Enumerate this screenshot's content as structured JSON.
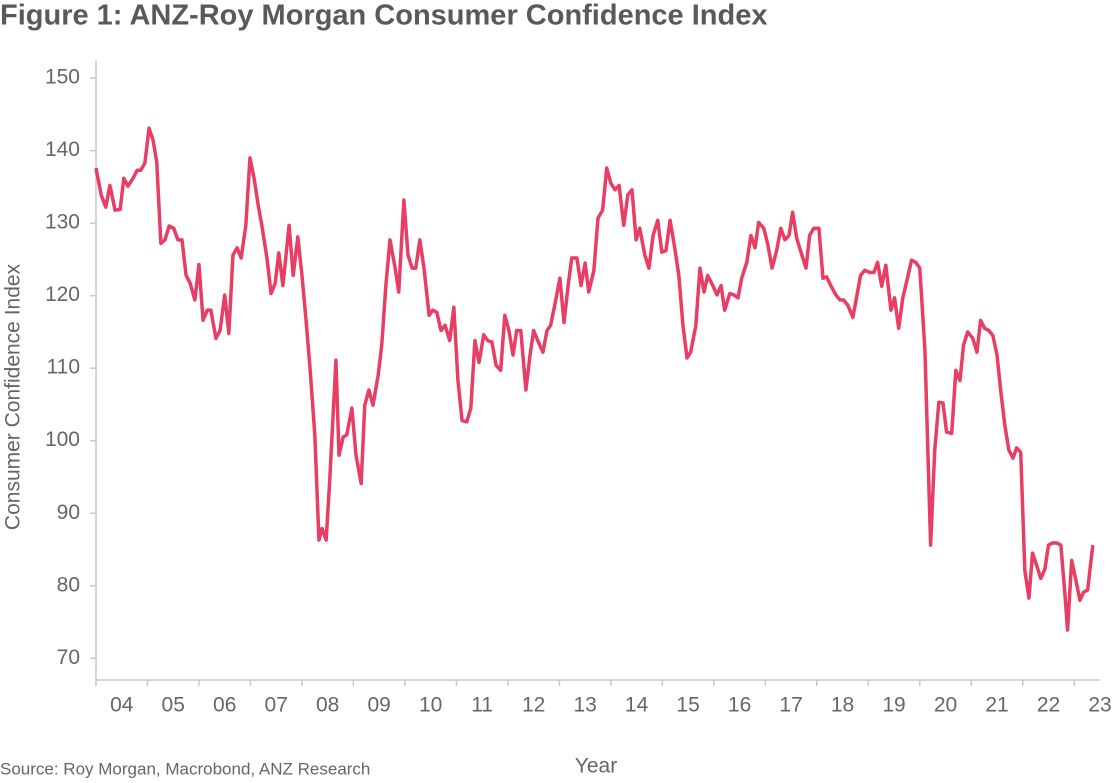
{
  "chart_data": {
    "type": "line",
    "title": "Figure 1: ANZ-Roy Morgan Consumer Confidence Index",
    "x_label": "Year",
    "y_label": "Consumer Confidence Index",
    "source": "Source: Roy Morgan, Macrobond, ANZ Research",
    "xlim": [
      2004,
      2023.5
    ],
    "ylim": [
      67,
      152.5
    ],
    "xticks": [
      {
        "value": 2004,
        "label": "04"
      },
      {
        "value": 2005,
        "label": "05"
      },
      {
        "value": 2006,
        "label": "06"
      },
      {
        "value": 2007,
        "label": "07"
      },
      {
        "value": 2008,
        "label": "08"
      },
      {
        "value": 2009,
        "label": "09"
      },
      {
        "value": 2010,
        "label": "10"
      },
      {
        "value": 2011,
        "label": "11"
      },
      {
        "value": 2012,
        "label": "12"
      },
      {
        "value": 2013,
        "label": "13"
      },
      {
        "value": 2014,
        "label": "14"
      },
      {
        "value": 2015,
        "label": "15"
      },
      {
        "value": 2016,
        "label": "16"
      },
      {
        "value": 2017,
        "label": "17"
      },
      {
        "value": 2018,
        "label": "18"
      },
      {
        "value": 2019,
        "label": "19"
      },
      {
        "value": 2020,
        "label": "20"
      },
      {
        "value": 2021,
        "label": "21"
      },
      {
        "value": 2022,
        "label": "22"
      },
      {
        "value": 2023,
        "label": "23"
      }
    ],
    "yticks": [
      70,
      80,
      90,
      100,
      110,
      120,
      130,
      140,
      150
    ],
    "grid": false,
    "x": [
      2004.0,
      2004.1,
      2004.19,
      2004.27,
      2004.37,
      2004.47,
      2004.54,
      2004.62,
      2004.72,
      2004.8,
      2004.87,
      2004.95,
      2005.03,
      2005.11,
      2005.18,
      2005.26,
      2005.34,
      2005.42,
      2005.51,
      2005.59,
      2005.67,
      2005.75,
      2005.83,
      2005.92,
      2006.0,
      2006.08,
      2006.16,
      2006.23,
      2006.33,
      2006.41,
      2006.5,
      2006.58,
      2006.66,
      2006.74,
      2006.82,
      2006.91,
      2006.99,
      2007.07,
      2007.15,
      2007.22,
      2007.32,
      2007.4,
      2007.48,
      2007.55,
      2007.63,
      2007.75,
      2007.83,
      2007.92,
      2008.0,
      2008.08,
      2008.16,
      2008.25,
      2008.33,
      2008.39,
      2008.47,
      2008.54,
      2008.66,
      2008.72,
      2008.8,
      2008.87,
      2008.97,
      2009.05,
      2009.15,
      2009.22,
      2009.3,
      2009.38,
      2009.48,
      2009.55,
      2009.63,
      2009.71,
      2009.81,
      2009.88,
      2009.98,
      2010.06,
      2010.14,
      2010.21,
      2010.29,
      2010.37,
      2010.47,
      2010.54,
      2010.62,
      2010.7,
      2010.78,
      2010.87,
      2010.95,
      2011.03,
      2011.11,
      2011.2,
      2011.28,
      2011.36,
      2011.44,
      2011.53,
      2011.61,
      2011.69,
      2011.77,
      2011.86,
      2011.94,
      2012.02,
      2012.1,
      2012.17,
      2012.25,
      2012.35,
      2012.43,
      2012.5,
      2012.58,
      2012.68,
      2012.76,
      2012.83,
      2012.91,
      2013.01,
      2013.09,
      2013.17,
      2013.24,
      2013.34,
      2013.42,
      2013.5,
      2013.57,
      2013.67,
      2013.75,
      2013.84,
      2013.92,
      2014.0,
      2014.08,
      2014.16,
      2014.25,
      2014.33,
      2014.41,
      2014.49,
      2014.56,
      2014.66,
      2014.74,
      2014.82,
      2014.91,
      2014.99,
      2015.07,
      2015.15,
      2015.24,
      2015.32,
      2015.4,
      2015.48,
      2015.55,
      2015.65,
      2015.73,
      2015.81,
      2015.88,
      2015.98,
      2016.06,
      2016.14,
      2016.21,
      2016.31,
      2016.39,
      2016.47,
      2016.54,
      2016.64,
      2016.72,
      2016.8,
      2016.87,
      2016.97,
      2017.05,
      2017.13,
      2017.22,
      2017.3,
      2017.38,
      2017.46,
      2017.53,
      2017.61,
      2017.71,
      2017.79,
      2017.86,
      2017.94,
      2018.04,
      2018.12,
      2018.19,
      2018.27,
      2018.37,
      2018.45,
      2018.52,
      2018.6,
      2018.7,
      2018.78,
      2018.85,
      2018.93,
      2019.03,
      2019.11,
      2019.18,
      2019.26,
      2019.34,
      2019.44,
      2019.51,
      2019.59,
      2019.67,
      2019.75,
      2019.84,
      2019.92,
      2020.0,
      2020.1,
      2020.21,
      2020.29,
      2020.37,
      2020.45,
      2020.52,
      2020.62,
      2020.7,
      2020.78,
      2020.85,
      2020.93,
      2021.03,
      2021.11,
      2021.18,
      2021.26,
      2021.34,
      2021.42,
      2021.5,
      2021.57,
      2021.65,
      2021.73,
      2021.81,
      2021.88,
      2021.96,
      2022.04,
      2022.12,
      2022.19,
      2022.27,
      2022.35,
      2022.43,
      2022.5,
      2022.58,
      2022.66,
      2022.74,
      2022.82,
      2022.87,
      2022.95,
      2023.03,
      2023.11,
      2023.18,
      2023.26,
      2023.36
    ],
    "series": [
      {
        "name": "Consumer Confidence Index",
        "color": "#e83e63",
        "values": [
          137.6,
          133.9,
          132.2,
          135.2,
          131.8,
          131.9,
          136.2,
          135.1,
          136.2,
          137.3,
          137.3,
          138.3,
          143.1,
          141.4,
          138.4,
          127.2,
          127.7,
          129.6,
          129.3,
          127.7,
          127.7,
          122.8,
          121.7,
          119.4,
          124.3,
          116.6,
          118.0,
          118.0,
          114.1,
          115.2,
          120.1,
          114.8,
          125.6,
          126.6,
          125.2,
          129.7,
          139.0,
          136.2,
          132.5,
          129.7,
          125.2,
          120.3,
          121.7,
          125.9,
          121.4,
          129.7,
          122.8,
          128.1,
          122.8,
          116.6,
          109.7,
          100.8,
          86.3,
          87.9,
          86.3,
          94.6,
          111.1,
          98.0,
          100.5,
          100.8,
          104.5,
          98.0,
          94.1,
          104.9,
          107.0,
          104.9,
          109.0,
          113.2,
          121.4,
          127.7,
          123.8,
          120.5,
          133.2,
          125.6,
          123.8,
          123.8,
          127.7,
          123.8,
          117.3,
          118.0,
          117.7,
          115.2,
          115.9,
          113.8,
          118.4,
          108.3,
          102.8,
          102.6,
          104.5,
          113.8,
          110.8,
          114.6,
          113.8,
          113.6,
          110.4,
          109.7,
          117.3,
          115.2,
          111.8,
          115.2,
          115.2,
          107.0,
          111.8,
          115.2,
          113.8,
          112.2,
          115.2,
          115.9,
          118.7,
          122.4,
          116.3,
          121.4,
          125.2,
          125.2,
          121.4,
          124.5,
          120.5,
          123.5,
          130.7,
          131.8,
          137.6,
          135.5,
          134.6,
          135.2,
          129.7,
          133.9,
          134.6,
          127.7,
          129.3,
          125.6,
          123.8,
          128.3,
          130.4,
          126.0,
          126.2,
          130.4,
          126.6,
          122.8,
          115.9,
          111.4,
          112.2,
          115.9,
          123.8,
          120.5,
          122.8,
          121.4,
          120.1,
          121.4,
          118.0,
          120.3,
          120.1,
          119.7,
          122.4,
          124.6,
          128.3,
          126.6,
          130.1,
          129.3,
          127.0,
          123.8,
          126.2,
          129.3,
          127.7,
          128.3,
          131.5,
          127.9,
          125.6,
          123.8,
          128.3,
          129.3,
          129.3,
          122.4,
          122.6,
          121.4,
          120.1,
          119.4,
          119.4,
          118.7,
          117.0,
          120.1,
          122.8,
          123.5,
          123.2,
          123.2,
          124.6,
          121.3,
          124.2,
          118.0,
          119.7,
          115.5,
          119.7,
          122.1,
          124.9,
          124.6,
          123.8,
          112.5,
          85.6,
          98.7,
          105.3,
          105.2,
          101.2,
          101.0,
          109.7,
          108.3,
          113.2,
          115.0,
          114.1,
          112.2,
          116.6,
          115.5,
          115.2,
          114.5,
          111.8,
          107.0,
          102.2,
          98.7,
          97.6,
          99.0,
          98.4,
          82.1,
          78.3,
          84.5,
          82.8,
          81.0,
          82.3,
          85.6,
          85.9,
          85.9,
          85.6,
          78.7,
          73.9,
          83.5,
          80.8,
          78.0,
          79.1,
          79.4,
          85.6
        ]
      }
    ]
  }
}
